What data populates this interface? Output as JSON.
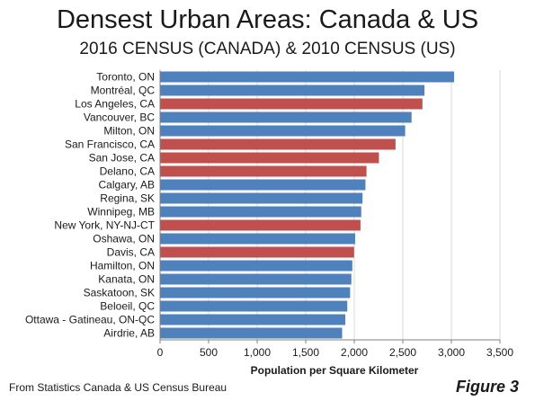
{
  "header": {
    "title": "Densest Urban Areas: Canada & US",
    "subtitle": "2016 CENSUS (CANADA) & 2010 CENSUS (US)"
  },
  "footer": {
    "source": "From Statistics Canada & US Census Bureau",
    "figure_label": "Figure 3"
  },
  "colors": {
    "canada": "#4f81bd",
    "us": "#c0504d",
    "grid": "#d9d9d9",
    "axis": "#808080"
  },
  "chart_data": {
    "type": "bar",
    "orientation": "horizontal",
    "xlabel": "Population  per Square Kilometer",
    "ylabel": "",
    "xlim": [
      0,
      3500
    ],
    "x_ticks": [
      0,
      500,
      1000,
      1500,
      2000,
      2500,
      3000,
      3500
    ],
    "x_tick_labels": [
      "0",
      "500",
      "1,000",
      "1,500",
      "2,000",
      "2,500",
      "3,000",
      "3,500"
    ],
    "grid": "vertical",
    "categories": [
      "Toronto, ON",
      "Montréal, QC",
      "Los Angeles, CA",
      "Vancouver, BC",
      "Milton, ON",
      "San Francisco, CA",
      "San Jose, CA",
      "Delano, CA",
      "Calgary, AB",
      "Regina, SK",
      "Winnipeg, MB",
      "New York, NY-NJ-CT",
      "Oshawa, ON",
      "Davis, CA",
      "Hamilton, ON",
      "Kanata, ON",
      "Saskatoon, SK",
      "Beloeil, QC",
      "Ottawa - Gatineau, ON-QC",
      "Airdrie, AB"
    ],
    "values": [
      3028,
      2723,
      2702,
      2590,
      2524,
      2425,
      2254,
      2126,
      2115,
      2085,
      2072,
      2064,
      2009,
      1998,
      1980,
      1970,
      1957,
      1928,
      1908,
      1875
    ],
    "country": [
      "canada",
      "canada",
      "us",
      "canada",
      "canada",
      "us",
      "us",
      "us",
      "canada",
      "canada",
      "canada",
      "us",
      "canada",
      "us",
      "canada",
      "canada",
      "canada",
      "canada",
      "canada",
      "canada"
    ]
  }
}
